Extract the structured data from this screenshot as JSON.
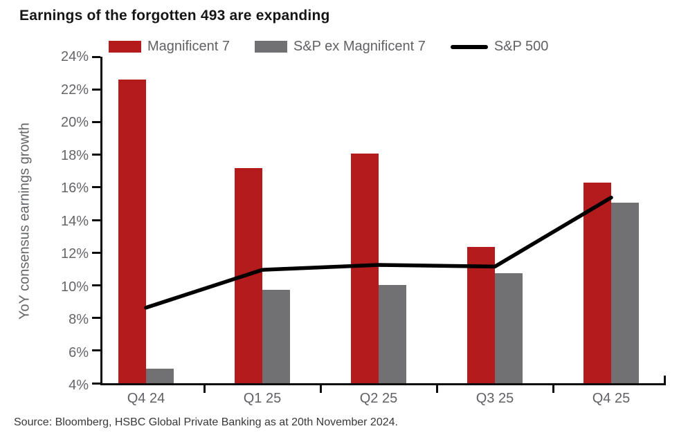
{
  "source": "Source: Bloomberg, HSBC Global Private Banking as at 20th November 2024.",
  "colors": {
    "magnificent7_red": "#b31b1d",
    "ex_magnificent7_gray": "#717174",
    "sp500_black": "#0c0c0c",
    "axis_text_gray": "#646569",
    "title_text": "#161617"
  },
  "chart_data": {
    "type": "bar",
    "title": "Earnings of the forgotten 493 are expanding",
    "categories": [
      "Q4 24",
      "Q1 25",
      "Q2 25",
      "Q3 25",
      "Q4 25"
    ],
    "series": [
      {
        "name": "Magnificent 7",
        "type": "bar",
        "color": "#b31b1d",
        "values": [
          22.5,
          17.1,
          18.0,
          12.3,
          16.2
        ]
      },
      {
        "name": "S&P ex Magnificent 7",
        "type": "bar",
        "color": "#717174",
        "values": [
          4.9,
          9.7,
          10.0,
          10.7,
          15.0
        ]
      },
      {
        "name": "S&P 500",
        "type": "line",
        "color": "#000000",
        "values": [
          8.6,
          10.9,
          11.2,
          11.1,
          15.3
        ]
      }
    ],
    "xlabel": "",
    "ylabel": "YoY consensus earnings growth",
    "ylim": [
      4,
      24
    ],
    "ytick_step": 2,
    "ytick_labels": [
      "24%",
      "22%",
      "20%",
      "18%",
      "16%",
      "14%",
      "12%",
      "10%",
      "8%",
      "6%",
      "4%"
    ],
    "legend_position": "top",
    "grid": false
  }
}
